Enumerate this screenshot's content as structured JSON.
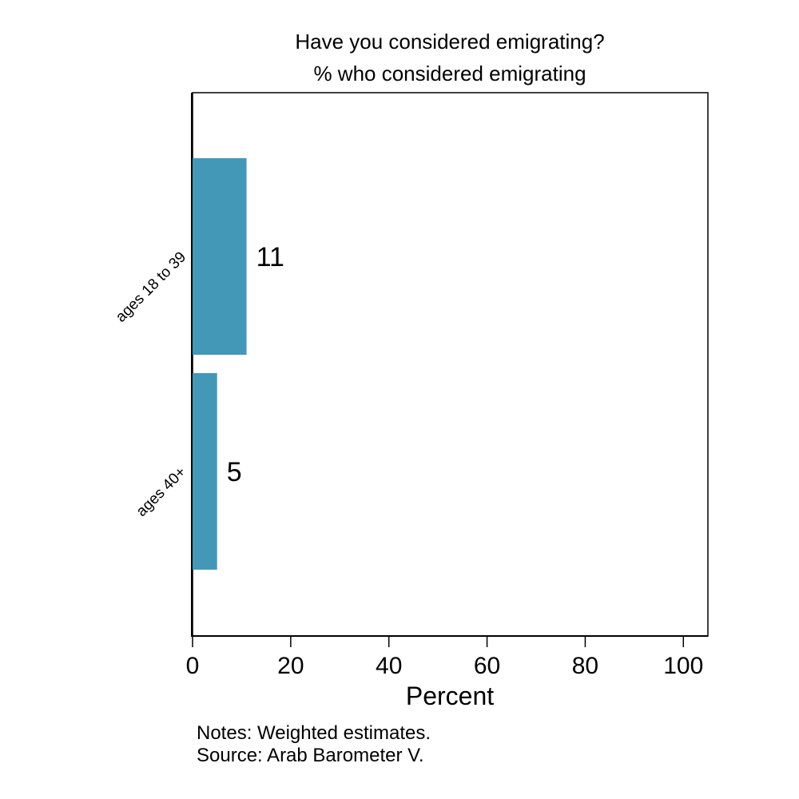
{
  "chart_data": {
    "type": "bar",
    "orientation": "horizontal",
    "title": "Have you considered emigrating?",
    "subtitle": "% who considered emigrating",
    "xlabel": "Percent",
    "ylabel": "",
    "categories": [
      "ages 18 to 39",
      "ages 40+"
    ],
    "values": [
      11,
      5
    ],
    "data_labels": [
      "11",
      "5"
    ],
    "xlim": [
      0,
      105
    ],
    "xticks": [
      0,
      20,
      40,
      60,
      80,
      100
    ],
    "xtick_labels": [
      "0",
      "20",
      "40",
      "60",
      "80",
      "100"
    ],
    "grid": false,
    "legend": "none",
    "bar_color": "#4398b8",
    "notes": [
      "Notes: Weighted estimates.",
      "Source: Arab Barometer V."
    ]
  }
}
